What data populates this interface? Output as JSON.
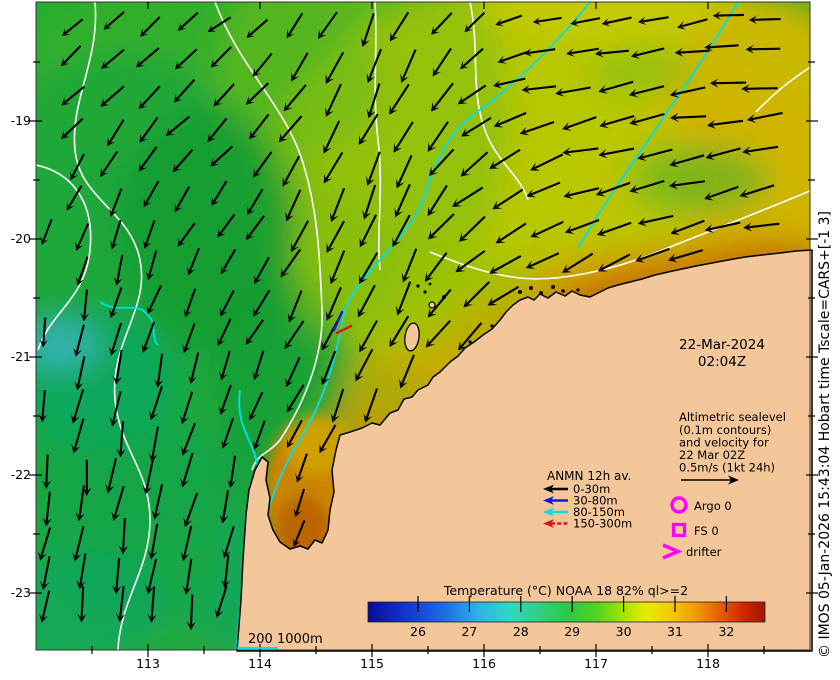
{
  "figure": {
    "date_line1": "22-Mar-2024",
    "date_line2": "02:04Z",
    "credit": "© IMOS 05-Jan-2026 15:43:04 Hobart time Tscale=CARS+[-1 3]",
    "scalebar_label": "200 1000m"
  },
  "axes": {
    "x_ticks": [
      "113",
      "114",
      "115",
      "116",
      "117",
      "118"
    ],
    "y_ticks": [
      "-19",
      "-20",
      "-21",
      "-22",
      "-23"
    ]
  },
  "annotation": {
    "lines": [
      "Altimetric sealevel",
      "(0.1m contours)",
      "and velocity for",
      "22 Mar 02Z",
      "0.5m/s (1kt 24h)"
    ]
  },
  "anmn": {
    "title": "ANMN 12h av.",
    "items": [
      {
        "label": "0-30m",
        "color": "#000000"
      },
      {
        "label": "30-80m",
        "color": "#1515e0"
      },
      {
        "label": "80-150m",
        "color": "#00e0e0"
      },
      {
        "label": "150-300m",
        "color": "#e01515"
      }
    ]
  },
  "markers": {
    "argo_label": "Argo 0",
    "fs_label": "FS 0",
    "drifter_label": "drifter",
    "color": "#ff00ff"
  },
  "colorbar": {
    "title": "Temperature (°C) NOAA 18 82% ql>=2",
    "ticks": [
      "26",
      "27",
      "28",
      "29",
      "30",
      "31",
      "32"
    ]
  },
  "colors": {
    "land": "#f4c79b",
    "ocean_green": "#2cc43c",
    "warm_yellow": "#e9e800",
    "warm_orange": "#f09c00",
    "hot_red": "#c84a00",
    "contour_sealevel": "#ffffff",
    "contour_isobath": "#00dff0",
    "vector_arrow": "#000000"
  }
}
